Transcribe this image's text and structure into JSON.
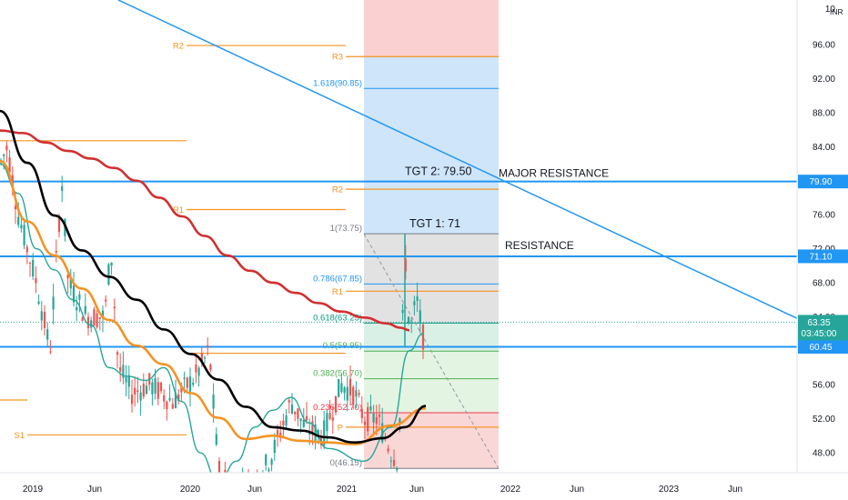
{
  "chart_data": {
    "type": "line",
    "title": "",
    "currency": "INR",
    "x_ticks": [
      "2019",
      "Jun",
      "2020",
      "Jun",
      "2021",
      "Jun",
      "2022",
      "Jun",
      "2023",
      "Jun"
    ],
    "y_ticks": [
      "10",
      "96.00",
      "92.00",
      "88.00",
      "84.00",
      "80.00",
      "76.00",
      "72.00",
      "68.00",
      "64.00",
      "60.00",
      "56.00",
      "52.00",
      "48.00"
    ],
    "ylim": [
      44.8,
      100.4
    ],
    "current_price": {
      "label": "63.35",
      "countdown": "03:45:00",
      "value": 63.35
    },
    "horizontal_levels": [
      {
        "label": "79.90",
        "value": 79.9
      },
      {
        "label": "71.10",
        "value": 71.1
      },
      {
        "label": "60.45",
        "value": 60.45
      }
    ],
    "annotations": {
      "tgt2": "TGT 2: 79.50",
      "tgt1": "TGT 1: 71",
      "major_resistance": "MAJOR RESISTANCE",
      "resistance": "RESISTANCE"
    },
    "pivots": [
      {
        "label": "R2",
        "value": 95.9
      },
      {
        "label": "R1",
        "value": 76.6
      },
      {
        "label": "S1",
        "value": 50.1
      },
      {
        "label": "R3",
        "value": 94.6
      },
      {
        "label": "R2",
        "value": 79.0
      },
      {
        "label": "R1",
        "value": 67.0
      },
      {
        "label": "P",
        "value": 51.0
      },
      {
        "label": "",
        "value": 84.7
      },
      {
        "label": "",
        "value": 59.7
      },
      {
        "label": "",
        "value": 54.2
      }
    ],
    "fib_levels": [
      {
        "label": "1.618(90.85)",
        "value": 90.85
      },
      {
        "label": "1(73.75)",
        "value": 73.75
      },
      {
        "label": "0.786(67.85)",
        "value": 67.85
      },
      {
        "label": "0.618(63.25)",
        "value": 63.25
      },
      {
        "label": "0.5(59.95)",
        "value": 59.95
      },
      {
        "label": "0.382(56.70)",
        "value": 56.7
      },
      {
        "label": "0.236(52.70)",
        "value": 52.7
      },
      {
        "label": "0(46.15)",
        "value": 46.15
      }
    ],
    "series": [
      {
        "name": "",
        "color": "#d32f2f",
        "values": [
          85.9,
          85.6,
          84.5,
          83.5,
          82.6,
          81.5,
          80.0,
          78.0,
          75.8,
          73.5,
          71.2,
          69.4,
          68.0,
          66.8,
          65.6,
          64.6,
          63.9,
          63.2,
          62.7,
          62.4
        ]
      },
      {
        "name": "",
        "color": "#000000",
        "values": [
          88.2,
          82.1,
          75.9,
          71.8,
          68.7,
          66.0,
          62.5,
          59.6,
          56.6,
          53.4,
          51.0,
          50.6,
          49.8,
          49.2,
          49.7,
          51.0,
          53.5
        ]
      },
      {
        "name": "",
        "color": "#f59323",
        "values": [
          82.3,
          75.2,
          71.2,
          67.3,
          63.6,
          60.6,
          58.4,
          55.0,
          52.1,
          49.6,
          50.0,
          49.4,
          49.2,
          49.0,
          51.2,
          53.2
        ]
      },
      {
        "name": "",
        "color": "#26a69a",
        "values": [
          82.0,
          78.5,
          72.0,
          69.5,
          66.0,
          63.0,
          58.0,
          57.0,
          56.5,
          58.0,
          54.0,
          48.0,
          44.5,
          47.0,
          51.0,
          53.0,
          54.5,
          51.5,
          48.5,
          47.0,
          51.0,
          60.0,
          62.0
        ]
      }
    ]
  }
}
